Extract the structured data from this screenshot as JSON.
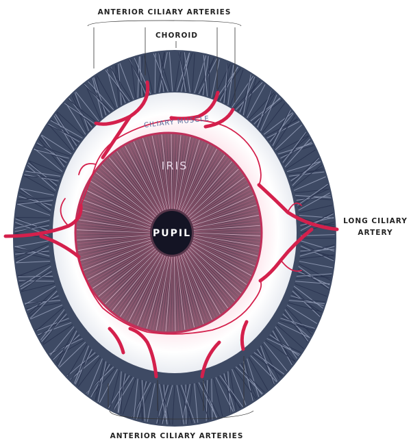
{
  "labels": {
    "top_arteries": "ANTERIOR CILIARY ARTERIES",
    "choroid": "CHOROID",
    "ciliary_muscle": "CILIARY MUSCLE",
    "iris": "IRIS",
    "pupil": "PUPIL",
    "long_ciliary_artery": [
      "LONG CILIARY",
      "ARTERY"
    ],
    "bottom_arteries": "ANTERIOR CILIARY ARTERIES"
  }
}
